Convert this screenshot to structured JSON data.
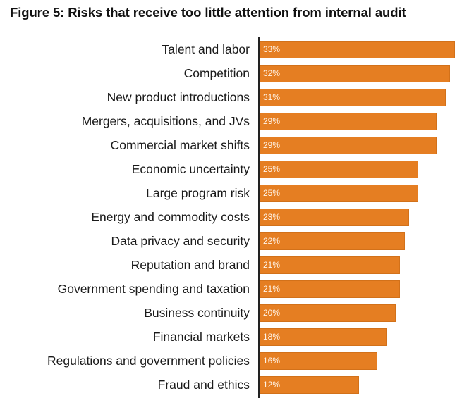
{
  "chart_data": {
    "type": "bar",
    "orientation": "horizontal",
    "title": "Figure 5: Risks that receive too little attention from internal audit",
    "xlabel": "",
    "ylabel": "",
    "grid": false,
    "legend": "none",
    "bar_color": "#e57e22",
    "value_suffix": "%",
    "categories": [
      "Talent and labor",
      "Competition",
      "New product introductions",
      "Mergers, acquisitions, and JVs",
      "Commercial market shifts",
      "Economic uncertainty",
      "Large program risk",
      "Energy and commodity costs",
      "Data privacy and security",
      "Reputation and brand",
      "Government spending and taxation",
      "Business continuity",
      "Financial markets",
      "Regulations and government policies",
      "Fraud and ethics"
    ],
    "values": [
      33,
      32,
      31,
      29,
      29,
      25,
      25,
      23,
      22,
      21,
      21,
      20,
      18,
      16,
      12
    ],
    "value_labels": [
      "33%",
      "32%",
      "31%",
      "29%",
      "29%",
      "25%",
      "25%",
      "23%",
      "22%",
      "21%",
      "21%",
      "20%",
      "18%",
      "16%",
      "12%"
    ]
  }
}
